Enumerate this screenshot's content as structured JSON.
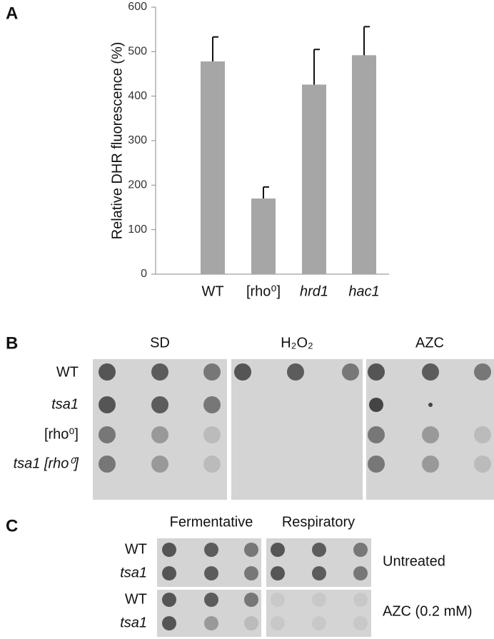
{
  "panel_labels": [
    "A",
    "B",
    "C"
  ],
  "chart_data": {
    "type": "bar",
    "y_label": "Relative DHR fluorescence (%)",
    "categories": [
      "WT",
      "[rho⁰]",
      "hrd1",
      "hac1"
    ],
    "values": [
      478,
      170,
      426,
      492
    ],
    "errors": [
      55,
      26,
      79,
      64
    ],
    "color": "#a6a6a6",
    "ylim": [
      0,
      600
    ],
    "yticks": [
      0,
      100,
      200,
      300,
      400,
      500,
      600
    ],
    "grid": false
  },
  "panel_b": {
    "columns": [
      "SD",
      "H₂O₂",
      "AZC"
    ],
    "rows": [
      "WT",
      "tsa1",
      "[rho⁰]",
      "tsa1 [rho⁰]"
    ]
  },
  "panel_c": {
    "columns": [
      "Fermentative",
      "Respiratory"
    ],
    "rows": [
      "WT",
      "tsa1",
      "WT",
      "tsa1"
    ],
    "conditions": [
      "Untreated",
      "AZC (0.2 mM)"
    ]
  }
}
